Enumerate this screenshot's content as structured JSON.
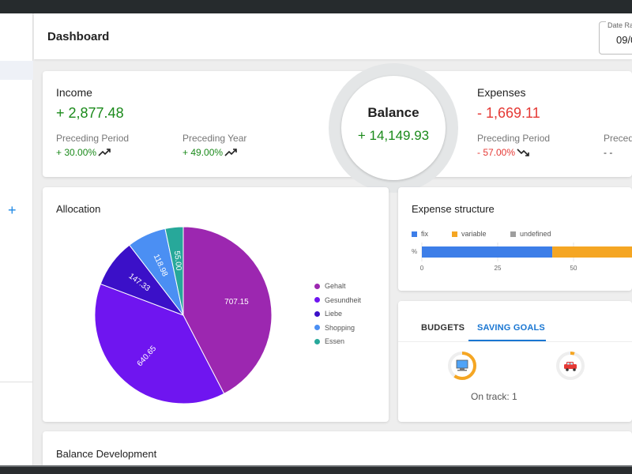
{
  "header": {
    "title": "Dashboard",
    "date_label": "Date Ra",
    "date_value": "09/0"
  },
  "income": {
    "title": "Income",
    "amount": "+ 2,877.48",
    "preceding_period_label": "Preceding Period",
    "preceding_period_value": "+ 30.00%",
    "preceding_year_label": "Preceding Year",
    "preceding_year_value": "+ 49.00%"
  },
  "balance": {
    "title": "Balance",
    "amount": "+ 14,149.93"
  },
  "expenses": {
    "title": "Expenses",
    "amount": "- 1,669.11",
    "preceding_period_label": "Preceding Period",
    "preceding_period_value": "- 57.00%",
    "preceding_year_label": "Preced",
    "preceding_year_value": "- -"
  },
  "allocation": {
    "title": "Allocation",
    "chart_data": {
      "type": "pie",
      "title": "",
      "categories": [
        "Gehalt",
        "Gesundheit",
        "Liebe",
        "Shopping",
        "Essen"
      ],
      "values": [
        707.15,
        640.65,
        147.33,
        118.98,
        55.0
      ],
      "labels": [
        "707.15",
        "640.65",
        "147.33",
        "118.98",
        "55.00"
      ],
      "colors": [
        "#9c27b0",
        "#6f15f0",
        "#3b10c8",
        "#4b8ff3",
        "#27a89a"
      ],
      "legend_position": "right"
    }
  },
  "expense_structure": {
    "title": "Expense structure",
    "legend": [
      {
        "name": "fix",
        "color": "#3d7ee8"
      },
      {
        "name": "variable",
        "color": "#f5a623"
      },
      {
        "name": "undefined",
        "color": "#9e9e9e"
      }
    ],
    "y_label": "%",
    "ticks": [
      "0",
      "25",
      "50"
    ],
    "chart_data": {
      "type": "bar",
      "orientation": "horizontal",
      "stacked": true,
      "series": [
        {
          "name": "fix",
          "values": [
            43
          ]
        },
        {
          "name": "variable",
          "values": [
            57
          ]
        },
        {
          "name": "undefined",
          "values": [
            0
          ]
        }
      ],
      "xlim": [
        0,
        100
      ],
      "ylabel": "%"
    }
  },
  "budgets": {
    "tabs": [
      "BUDGETS",
      "SAVING GOALS"
    ],
    "active_tab": "SAVING GOALS",
    "goals": [
      {
        "icon": "monitor-icon",
        "progress": 0.6
      },
      {
        "icon": "car-icon",
        "progress": 0.05
      }
    ],
    "on_track": "On track: 1"
  },
  "balance_development": {
    "title": "Balance Development"
  },
  "colors": {
    "green": "#1b8a1b",
    "red": "#e53935",
    "accent": "#1976d2"
  }
}
